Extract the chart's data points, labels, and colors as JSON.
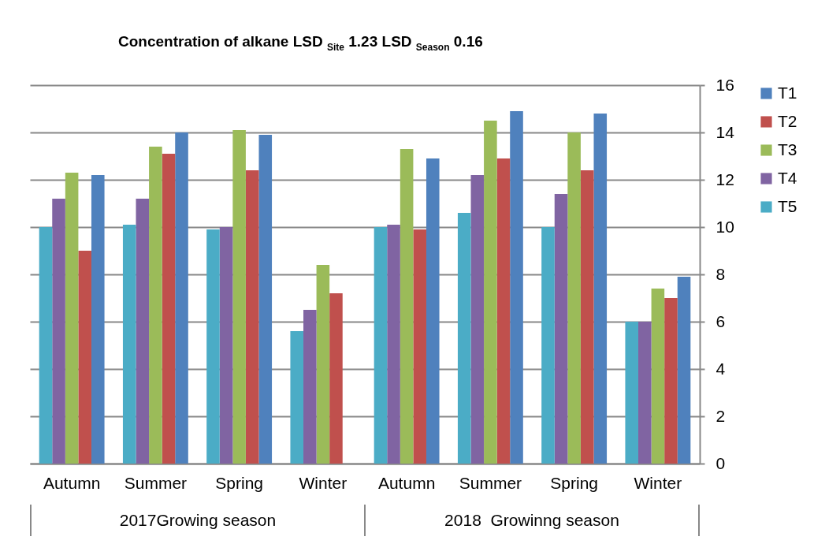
{
  "chart_data": {
    "type": "bar",
    "title": "Concentration of alkane LSD $_{Site}$ 1.23 LSD $_{Season}$ 0.16",
    "categories": [
      "Autumn",
      "Summer",
      "Spring",
      "Winter",
      "Autumn",
      "Summer",
      "Spring",
      "Winter"
    ],
    "series": [
      {
        "name": "T1",
        "color": "#4f81bd",
        "values": [
          12.2,
          14.0,
          13.9,
          null,
          12.9,
          14.9,
          14.8,
          7.9
        ]
      },
      {
        "name": "T2",
        "color": "#c0504d",
        "values": [
          9.0,
          13.1,
          12.4,
          7.2,
          9.9,
          12.9,
          12.4,
          7.0
        ]
      },
      {
        "name": "T3",
        "color": "#9bbb59",
        "values": [
          12.3,
          13.4,
          14.1,
          8.4,
          13.3,
          14.5,
          14.0,
          7.4
        ]
      },
      {
        "name": "T4",
        "color": "#8064a2",
        "values": [
          11.2,
          11.2,
          10.0,
          6.5,
          10.1,
          12.2,
          11.4,
          6.0
        ]
      },
      {
        "name": "T5",
        "color": "#4bacc6",
        "values": [
          10.0,
          10.1,
          9.9,
          5.6,
          10.0,
          10.6,
          10.0,
          6.0
        ]
      }
    ],
    "annotations": [
      "2017Growing season",
      "2018  Growinng season"
    ],
    "ylim": [
      0,
      16
    ],
    "yticks": [
      0,
      2,
      4,
      6,
      8,
      10,
      12,
      14,
      16
    ],
    "grid": "y",
    "legend": "right"
  }
}
